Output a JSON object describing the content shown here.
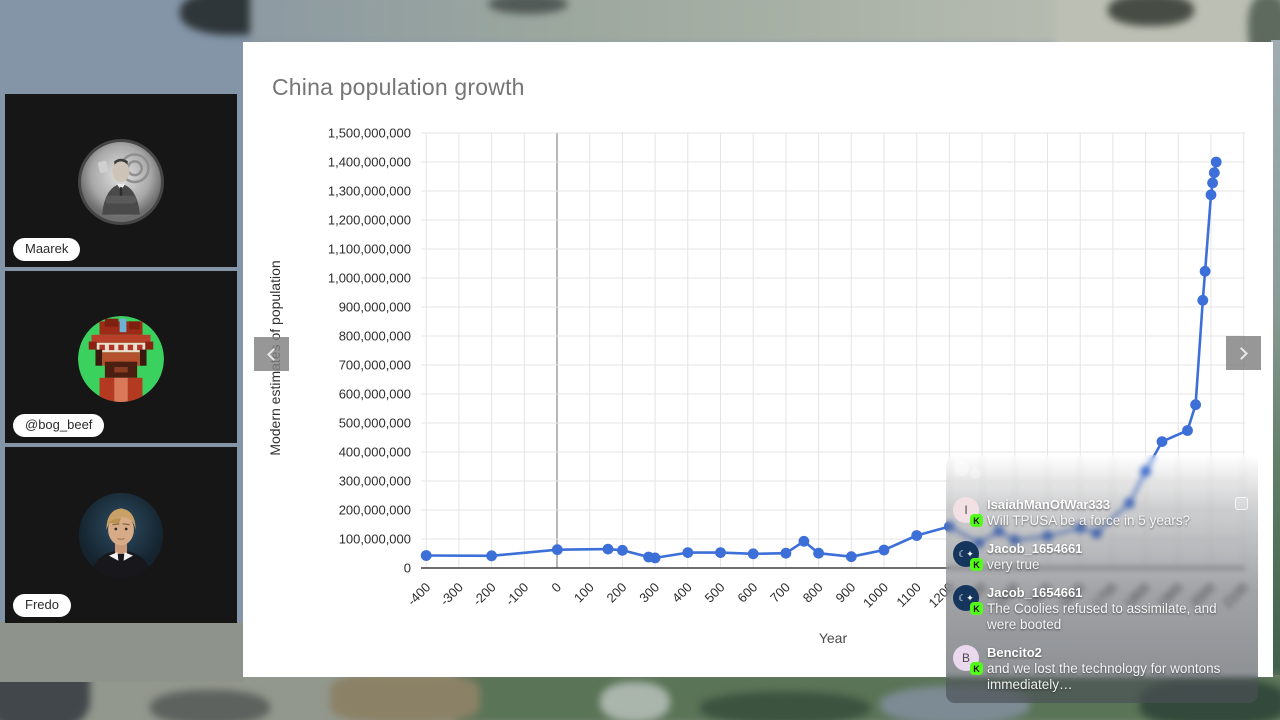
{
  "slide": {
    "title": "China population growth"
  },
  "participants": [
    {
      "name": "Maarek"
    },
    {
      "name": "@bog_beef"
    },
    {
      "name": "Fredo"
    }
  ],
  "carousel": {
    "prev_icon": "chevron-left",
    "next_icon": "chevron-right"
  },
  "chat": {
    "popout_icon": "popout-square",
    "badge": {
      "text": "K",
      "bg": "#53fc18",
      "color": "#0b0e07"
    },
    "messages": [
      {
        "user": "IsaiahManOfWar333",
        "text": "Will TPUSA be a force in 5 years?",
        "avatar": {
          "bg": "#f2e0e4",
          "glyph": "I",
          "glyph_color": "#4a4a4a"
        }
      },
      {
        "user": "Jacob_1654661",
        "text": "very true",
        "avatar": {
          "bg": "#16355c",
          "glyph": "☾✦",
          "glyph_color": "#ffffff"
        }
      },
      {
        "user": "Jacob_1654661",
        "text": "The Coolies refused to assimilate, and were booted",
        "avatar": {
          "bg": "#16355c",
          "glyph": "☾✦",
          "glyph_color": "#ffffff"
        }
      },
      {
        "user": "Bencito2",
        "text": "and we lost the technology for wontons immediately…",
        "avatar": {
          "bg": "#ead9ee",
          "glyph": "B",
          "glyph_color": "#4a4a4a"
        }
      }
    ]
  },
  "colors": {
    "chart_line": "#3d6fd8",
    "kick_green": "#53fc18"
  },
  "chart_data": {
    "type": "line",
    "title": "China population growth",
    "xlabel": "Year",
    "ylabel": "Modern estimates of population",
    "grid": true,
    "legend": "none",
    "line_color": "#3d6fd8",
    "x_range": [
      -420,
      2106
    ],
    "y_range": [
      0,
      1500000000
    ],
    "x_ticks": [
      -400,
      -300,
      -200,
      -100,
      0,
      100,
      200,
      300,
      400,
      500,
      600,
      700,
      800,
      900,
      1000,
      1100,
      1200,
      1300,
      1400,
      1500,
      1600,
      1700,
      1800,
      1900,
      2000,
      2100
    ],
    "y_ticks": [
      0,
      100000000,
      200000000,
      300000000,
      400000000,
      500000000,
      600000000,
      700000000,
      800000000,
      900000000,
      1000000000,
      1100000000,
      1200000000,
      1300000000,
      1400000000,
      1500000000
    ],
    "series": [
      {
        "name": "Modern estimates of population",
        "points": [
          [
            -400,
            43000000
          ],
          [
            -200,
            42000000
          ],
          [
            1,
            63000000
          ],
          [
            156,
            65000000
          ],
          [
            200,
            61000000
          ],
          [
            280,
            38000000
          ],
          [
            300,
            35000000
          ],
          [
            400,
            53000000
          ],
          [
            500,
            53000000
          ],
          [
            600,
            49000000
          ],
          [
            700,
            51000000
          ],
          [
            755,
            92000000
          ],
          [
            800,
            51000000
          ],
          [
            900,
            39000000
          ],
          [
            1000,
            62000000
          ],
          [
            1100,
            112000000
          ],
          [
            1200,
            143000000
          ],
          [
            1290,
            86000000
          ],
          [
            1351,
            127000000
          ],
          [
            1400,
            96000000
          ],
          [
            1500,
            110000000
          ],
          [
            1600,
            138000000
          ],
          [
            1650,
            120000000
          ],
          [
            1750,
            223000000
          ],
          [
            1800,
            333000000
          ],
          [
            1850,
            436000000
          ],
          [
            1928,
            474000000
          ],
          [
            1953,
            563000000
          ],
          [
            1975,
            923000000
          ],
          [
            1982,
            1023000000
          ],
          [
            2000,
            1287000000
          ],
          [
            2005,
            1328000000
          ],
          [
            2010,
            1363000000
          ],
          [
            2016,
            1400000000
          ]
        ]
      }
    ]
  }
}
